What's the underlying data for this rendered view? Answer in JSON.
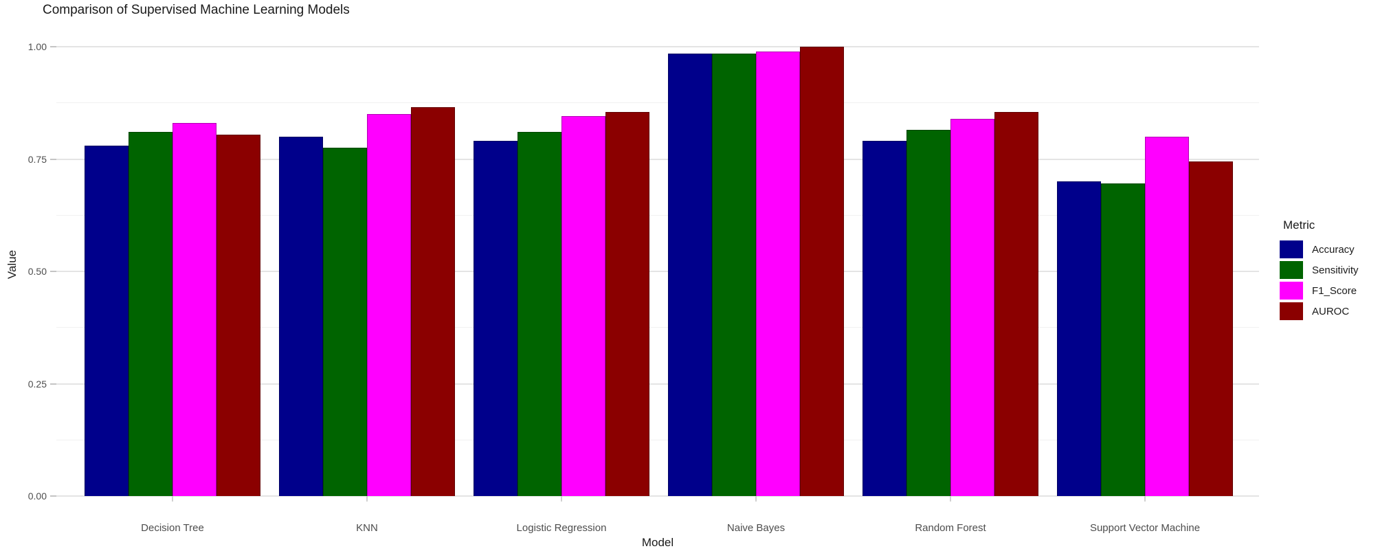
{
  "chart_data": {
    "type": "bar",
    "title": "Comparison of Supervised Machine Learning Models",
    "xlabel": "Model",
    "ylabel": "Value",
    "legend_title": "Metric",
    "legend_position": "right",
    "grid": "major+minor horizontal, white background",
    "categories": [
      "Decision Tree",
      "KNN",
      "Logistic Regression",
      "Naive Bayes",
      "Random Forest",
      "Support Vector Machine"
    ],
    "series": [
      {
        "name": "Accuracy",
        "color": "#00008B",
        "values": [
          0.78,
          0.8,
          0.79,
          0.985,
          0.79,
          0.7
        ]
      },
      {
        "name": "Sensitivity",
        "color": "#006400",
        "values": [
          0.81,
          0.775,
          0.81,
          0.985,
          0.815,
          0.695
        ]
      },
      {
        "name": "F1_Score",
        "color": "#FF00FF",
        "values": [
          0.83,
          0.85,
          0.845,
          0.99,
          0.84,
          0.8
        ]
      },
      {
        "name": "AUROC",
        "color": "#8B0000",
        "values": [
          0.805,
          0.865,
          0.855,
          1.0,
          0.855,
          0.745
        ]
      }
    ],
    "ylim": [
      0,
      1.0
    ],
    "yticks": [
      {
        "value": 0.0,
        "label": "0.00"
      },
      {
        "value": 0.25,
        "label": "0.25"
      },
      {
        "value": 0.5,
        "label": "0.50"
      },
      {
        "value": 0.75,
        "label": "0.75"
      },
      {
        "value": 1.0,
        "label": "1.00"
      }
    ],
    "minor_ticks": [
      0.125,
      0.375,
      0.625,
      0.875
    ]
  }
}
